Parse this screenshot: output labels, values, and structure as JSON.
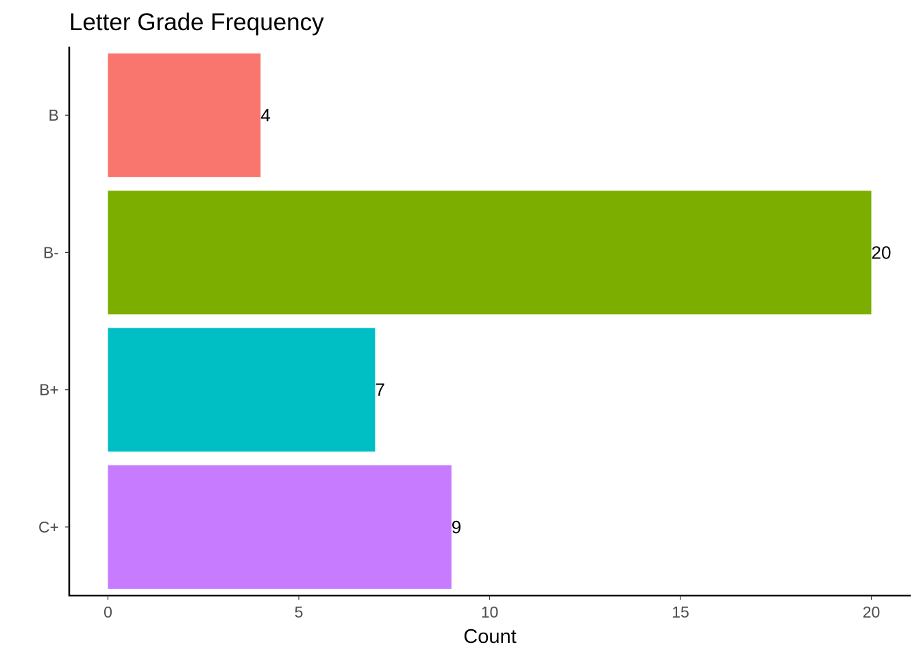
{
  "chart_data": {
    "type": "bar",
    "orientation": "horizontal",
    "title": "Letter Grade Frequency",
    "xlabel": "Count",
    "ylabel": "",
    "categories": [
      "B",
      "B-",
      "B+",
      "C+"
    ],
    "values": [
      4,
      20,
      7,
      9
    ],
    "data_labels": [
      "4",
      "20",
      "7",
      "9"
    ],
    "colors": [
      "#F8766D",
      "#7CAE00",
      "#00BFC4",
      "#C77CFF"
    ],
    "xlim": [
      0,
      20
    ],
    "x_ticks": [
      0,
      5,
      10,
      15,
      20
    ],
    "x_tick_labels": [
      "0",
      "5",
      "10",
      "15",
      "20"
    ],
    "grid": false,
    "legend": "none"
  }
}
